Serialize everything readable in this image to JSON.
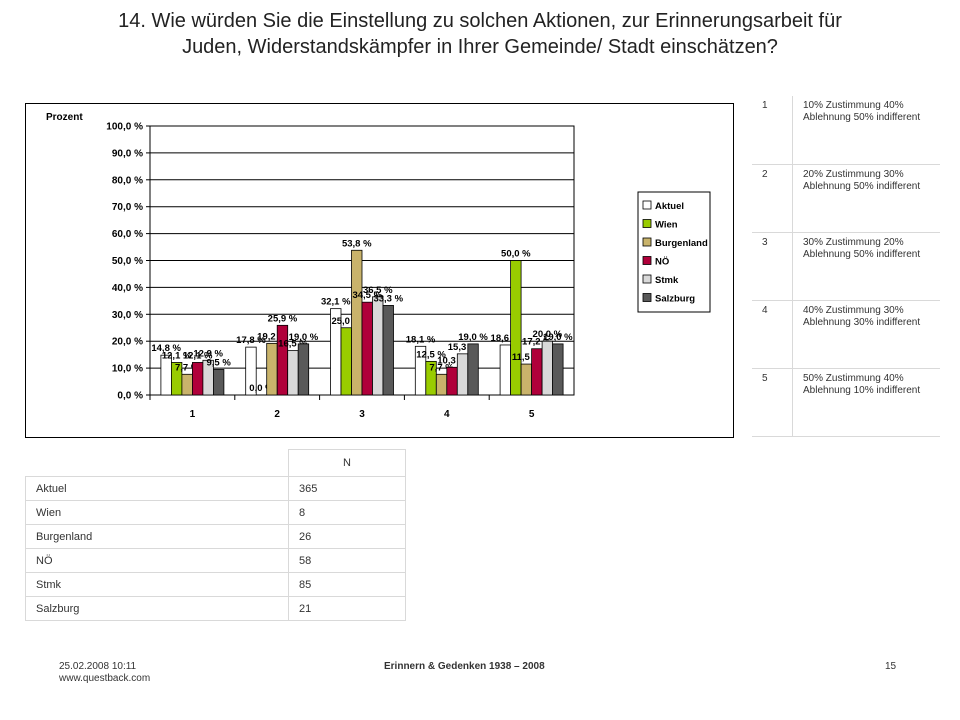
{
  "slide": {
    "title_line1": "14. Wie würden Sie die Einstellung zu solchen Aktionen, zur Erinnerungsarbeit für",
    "title_line2": "Juden, Widerstandskämpfer in Ihrer Gemeinde/ Stadt einschätzen?"
  },
  "chart_data": {
    "type": "bar",
    "ylabel": "Prozent",
    "ylim": [
      0,
      100
    ],
    "ytick_step": 10,
    "ytick_labels": [
      "0,0 %",
      "10,0 %",
      "20,0 %",
      "30,0 %",
      "40,0 %",
      "50,0 %",
      "60,0 %",
      "70,0 %",
      "80,0 %",
      "90,0 %",
      "100,0 %"
    ],
    "categories": [
      "1",
      "2",
      "3",
      "4",
      "5"
    ],
    "grid": true,
    "legend_position": "right",
    "series": [
      {
        "name": "Aktuel",
        "color": "#ffffff",
        "values": [
          14.8,
          17.8,
          32.1,
          18.1,
          18.6
        ],
        "labels": [
          "14,8 %",
          "17,8 %",
          "32,1 %",
          "18,1 %",
          "18,6 %"
        ]
      },
      {
        "name": "Wien",
        "color": "#99cc00",
        "values": [
          12.1,
          0.0,
          25.0,
          12.5,
          50.0
        ],
        "labels": [
          "12,1 %",
          "0,0 %",
          "25,0 %",
          "12,5 %",
          "50,0 %"
        ]
      },
      {
        "name": "Burgenland",
        "color": "#c9b36b",
        "values": [
          7.7,
          19.2,
          53.8,
          7.7,
          11.5
        ],
        "labels": [
          "7,7 %",
          "19,2 %",
          "53,8 %",
          "7,7 %",
          "11,5 %"
        ]
      },
      {
        "name": "NÖ",
        "color": "#b0003a",
        "values": [
          12.1,
          25.9,
          34.5,
          10.3,
          17.2
        ],
        "labels": [
          "12,1 %",
          "25,9 %",
          "34,5 %",
          "10,3 %",
          "17,2 %"
        ]
      },
      {
        "name": "Stmk",
        "color": "#d9d9d9",
        "values": [
          12.9,
          16.5,
          36.5,
          15.3,
          20.0
        ],
        "labels": [
          "12,9 %",
          "16,5 %",
          "36,5 %",
          "15,3 %",
          "20,0 %"
        ]
      },
      {
        "name": "Salzburg",
        "color": "#595959",
        "values": [
          9.5,
          19.0,
          33.3,
          19.0,
          19.0
        ],
        "labels": [
          "9,5 %",
          "19,0 %",
          "33,3 %",
          "19,0 %",
          "19,0 %"
        ]
      }
    ]
  },
  "legend_table": [
    {
      "num": "1",
      "text": "10% Zustimmung 40% Ablehnung 50% indifferent"
    },
    {
      "num": "2",
      "text": "20% Zustimmung 30% Ablehnung 50% indifferent"
    },
    {
      "num": "3",
      "text": "30% Zustimmung 20% Ablehnung 50% indifferent"
    },
    {
      "num": "4",
      "text": "40% Zustimmung 30% Ablehnung 30% indifferent"
    },
    {
      "num": "5",
      "text": "50% Zustimmung 40% Ablehnung 10% indifferent"
    }
  ],
  "n_table": {
    "header": "N",
    "rows": [
      {
        "label": "Aktuel",
        "n": "365"
      },
      {
        "label": "Wien",
        "n": "8"
      },
      {
        "label": "Burgenland",
        "n": "26"
      },
      {
        "label": "NÖ",
        "n": "58"
      },
      {
        "label": "Stmk",
        "n": "85"
      },
      {
        "label": "Salzburg",
        "n": "21"
      }
    ]
  },
  "footer": {
    "timestamp": "25.02.2008 10:11",
    "website": "www.questback.com",
    "center": "Erinnern & Gedenken 1938 – 2008",
    "page": "15"
  }
}
